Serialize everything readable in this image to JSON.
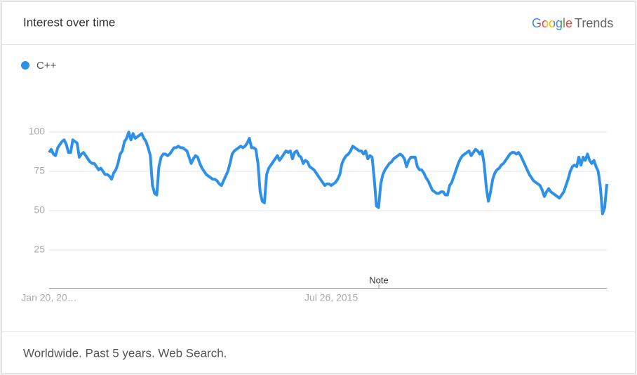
{
  "brand": {
    "logo": "Google",
    "product": "Trends"
  },
  "chart_data": {
    "type": "line",
    "title": "Interest over time",
    "note": "Worldwide. Past 5 years. Web Search.",
    "annotation": "Note",
    "categories": [
      "Jan 20, 20…",
      null,
      null,
      null,
      null,
      null,
      null,
      null,
      null,
      null,
      null,
      null,
      null,
      null,
      null,
      null,
      null,
      null,
      null,
      null,
      null,
      null,
      null,
      null,
      null,
      null,
      null,
      null,
      null,
      null,
      null,
      null,
      null,
      null,
      null,
      null,
      null,
      null,
      null,
      null,
      null,
      null,
      null,
      null,
      null,
      null,
      null,
      null,
      null,
      null,
      null,
      null,
      null,
      null,
      null,
      null,
      null,
      null,
      null,
      null,
      null,
      null,
      null,
      null,
      null,
      null,
      null,
      null,
      null,
      null,
      null,
      null,
      null,
      null,
      null,
      null,
      null,
      null,
      null,
      null,
      null,
      null,
      null,
      null,
      null,
      null,
      null,
      null,
      null,
      null,
      null,
      null,
      null,
      null,
      null,
      null,
      null,
      null,
      null,
      null,
      null,
      null,
      null,
      null,
      null,
      null,
      null,
      null,
      null,
      null,
      null,
      null,
      null,
      null,
      null,
      null,
      null,
      null,
      null,
      null,
      null,
      null,
      null,
      null,
      null,
      null,
      null,
      null,
      null,
      null,
      null,
      "Jul 26, 2015",
      null,
      null,
      null,
      null,
      null,
      null,
      null,
      null,
      null,
      null,
      null,
      null,
      null,
      null,
      null,
      null,
      null,
      null,
      null,
      null,
      null,
      null,
      null,
      null,
      null,
      null,
      null,
      null,
      null,
      null,
      null,
      null,
      null,
      null,
      null,
      null,
      null,
      null,
      null,
      null,
      null,
      null,
      null,
      null,
      null,
      null,
      null,
      null,
      null,
      null,
      null,
      null,
      null,
      null,
      null,
      null,
      null,
      null,
      null,
      null,
      null,
      null,
      null,
      null,
      null,
      null,
      null,
      null,
      null,
      null,
      null,
      null,
      null,
      null,
      null,
      null,
      null,
      null,
      null,
      null,
      null,
      null,
      null,
      null,
      null,
      null,
      null,
      null,
      null,
      null,
      null,
      null,
      null,
      null,
      null,
      null,
      null,
      null,
      null,
      null,
      null,
      null,
      null,
      null,
      null,
      null,
      null,
      null,
      null,
      null,
      null,
      null,
      null,
      null,
      null,
      null,
      null,
      null,
      null,
      null,
      null,
      null,
      null,
      null,
      null,
      null,
      null,
      null
    ],
    "series": [
      {
        "name": "C++",
        "color": "#2e90e6",
        "values": [
          87,
          89,
          86,
          85,
          90,
          92,
          94,
          95,
          92,
          87,
          87,
          95,
          94,
          93,
          84,
          86,
          87,
          85,
          83,
          81,
          80,
          80,
          78,
          76,
          77,
          75,
          73,
          73,
          72,
          70,
          74,
          76,
          80,
          86,
          88,
          94,
          96,
          100,
          95,
          99,
          96,
          97,
          98,
          99,
          96,
          94,
          90,
          85,
          66,
          61,
          60,
          78,
          84,
          86,
          86,
          85,
          86,
          88,
          90,
          90,
          91,
          90,
          90,
          89,
          88,
          84,
          80,
          83,
          85,
          84,
          80,
          77,
          75,
          73,
          72,
          71,
          70,
          70,
          69,
          67,
          66,
          69,
          72,
          75,
          80,
          86,
          88,
          89,
          90,
          91,
          90,
          91,
          93,
          96,
          90,
          90,
          89,
          80,
          62,
          56,
          55,
          73,
          77,
          79,
          81,
          83,
          85,
          82,
          84,
          86,
          88,
          87,
          88,
          83,
          87,
          88,
          85,
          84,
          80,
          82,
          81,
          78,
          77,
          76,
          74,
          72,
          70,
          68,
          66,
          67,
          67,
          66,
          67,
          68,
          70,
          73,
          80,
          83,
          85,
          86,
          88,
          91,
          90,
          89,
          88,
          88,
          86,
          88,
          83,
          85,
          84,
          70,
          53,
          52,
          67,
          73,
          76,
          78,
          80,
          81,
          83,
          84,
          85,
          86,
          85,
          83,
          78,
          82,
          84,
          84,
          84,
          78,
          76,
          76,
          74,
          71,
          69,
          66,
          63,
          62,
          61,
          61,
          62,
          62,
          60,
          60,
          66,
          68,
          72,
          76,
          80,
          83,
          85,
          86,
          87,
          88,
          85,
          87,
          89,
          88,
          86,
          88,
          80,
          65,
          56,
          62,
          70,
          74,
          76,
          77,
          79,
          80,
          82,
          84,
          86,
          87,
          87,
          86,
          87,
          85,
          82,
          79,
          76,
          73,
          71,
          69,
          68,
          67,
          66,
          63,
          59,
          62,
          64,
          62,
          61,
          60,
          59,
          58,
          60,
          62,
          66,
          70,
          75,
          78,
          79,
          78,
          84,
          79,
          84,
          82,
          86,
          82,
          80,
          82,
          78,
          75,
          65,
          48,
          52,
          67
        ]
      }
    ],
    "ylim": [
      0,
      100
    ],
    "yticks": [
      25,
      50,
      75,
      100
    ],
    "grid": true
  }
}
